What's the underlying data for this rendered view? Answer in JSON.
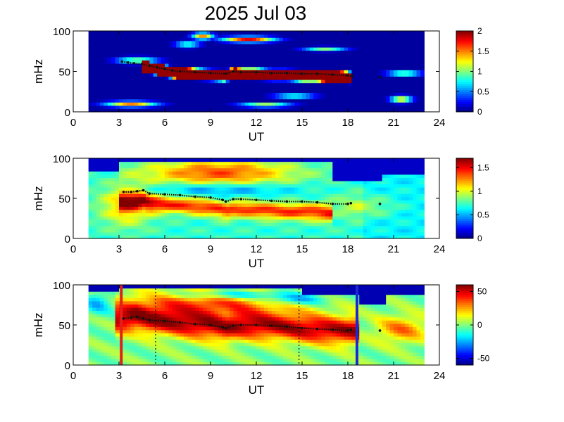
{
  "title": "2025 Jul 03",
  "chart_data": [
    {
      "type": "heatmap",
      "xlabel": "UT",
      "ylabel": "mHz",
      "xlim": [
        0,
        24
      ],
      "ylim": [
        0,
        100
      ],
      "xticks": [
        "0",
        "3",
        "6",
        "9",
        "12",
        "15",
        "18",
        "21",
        "24"
      ],
      "yticks": [
        "0",
        "50",
        "100"
      ],
      "colorbar": {
        "range": [
          0,
          2
        ],
        "ticks": [
          "0",
          "0.5",
          "1",
          "1.5",
          "2"
        ]
      },
      "data_window": [
        1,
        23
      ],
      "trace": [
        {
          "x": 3.2,
          "y": 62
        },
        {
          "x": 3.6,
          "y": 61
        },
        {
          "x": 4.0,
          "y": 60
        },
        {
          "x": 4.5,
          "y": 59
        },
        {
          "x": 5.0,
          "y": 57
        },
        {
          "x": 5.5,
          "y": 55
        },
        {
          "x": 6.0,
          "y": 53
        },
        {
          "x": 6.5,
          "y": 51
        },
        {
          "x": 7.0,
          "y": 50
        },
        {
          "x": 8.0,
          "y": 49
        },
        {
          "x": 9.0,
          "y": 48
        },
        {
          "x": 10.0,
          "y": 47
        },
        {
          "x": 10.5,
          "y": 50
        },
        {
          "x": 11.0,
          "y": 49
        },
        {
          "x": 12.0,
          "y": 49
        },
        {
          "x": 13.0,
          "y": 48
        },
        {
          "x": 14.0,
          "y": 48
        },
        {
          "x": 15.0,
          "y": 47
        },
        {
          "x": 16.0,
          "y": 47
        },
        {
          "x": 17.0,
          "y": 46
        },
        {
          "x": 18.0,
          "y": 45
        },
        {
          "x": 18.3,
          "y": 44
        },
        {
          "x": 20.1,
          "y": 43
        }
      ]
    },
    {
      "type": "heatmap",
      "xlabel": "UT",
      "ylabel": "mHz",
      "xlim": [
        0,
        24
      ],
      "ylim": [
        0,
        100
      ],
      "xticks": [
        "0",
        "3",
        "6",
        "9",
        "12",
        "15",
        "18",
        "21",
        "24"
      ],
      "yticks": [
        "0",
        "50",
        "100"
      ],
      "colorbar": {
        "range": [
          0,
          1.7
        ],
        "ticks": [
          "0",
          "0.5",
          "1",
          "1.5"
        ]
      },
      "data_window": [
        1,
        23
      ],
      "trace": [
        {
          "x": 3.3,
          "y": 58
        },
        {
          "x": 3.8,
          "y": 58
        },
        {
          "x": 4.2,
          "y": 59
        },
        {
          "x": 4.6,
          "y": 60
        },
        {
          "x": 5.0,
          "y": 56
        },
        {
          "x": 6.0,
          "y": 55
        },
        {
          "x": 7.0,
          "y": 54
        },
        {
          "x": 8.0,
          "y": 52
        },
        {
          "x": 9.0,
          "y": 51
        },
        {
          "x": 9.8,
          "y": 48
        },
        {
          "x": 10.0,
          "y": 46
        },
        {
          "x": 10.5,
          "y": 49
        },
        {
          "x": 11.0,
          "y": 49
        },
        {
          "x": 12.0,
          "y": 48
        },
        {
          "x": 13.0,
          "y": 47
        },
        {
          "x": 14.0,
          "y": 46
        },
        {
          "x": 15.0,
          "y": 46
        },
        {
          "x": 16.0,
          "y": 45
        },
        {
          "x": 17.0,
          "y": 43
        },
        {
          "x": 18.0,
          "y": 43
        },
        {
          "x": 18.2,
          "y": 44
        },
        {
          "x": 20.1,
          "y": 43
        }
      ]
    },
    {
      "type": "heatmap",
      "xlabel": "UT",
      "ylabel": "mHz",
      "xlim": [
        0,
        24
      ],
      "ylim": [
        0,
        100
      ],
      "xticks": [
        "0",
        "3",
        "6",
        "9",
        "12",
        "15",
        "18",
        "21",
        "24"
      ],
      "yticks": [
        "0",
        "50",
        "100"
      ],
      "colorbar": {
        "range": [
          -60,
          60
        ],
        "ticks": [
          "-50",
          "0",
          "50"
        ]
      },
      "data_window": [
        1,
        23
      ],
      "markers": [
        {
          "x": 3.15,
          "color": "#e0201b",
          "style": "solid"
        },
        {
          "x": 5.4,
          "color": "#111111",
          "style": "dotted"
        },
        {
          "x": 14.8,
          "color": "#111111",
          "style": "dotted"
        },
        {
          "x": 18.6,
          "color": "#1a2bd6",
          "style": "solid"
        }
      ],
      "trace": [
        {
          "x": 3.3,
          "y": 58
        },
        {
          "x": 3.8,
          "y": 59
        },
        {
          "x": 4.2,
          "y": 60
        },
        {
          "x": 4.6,
          "y": 58
        },
        {
          "x": 5.0,
          "y": 56
        },
        {
          "x": 6.0,
          "y": 55
        },
        {
          "x": 7.0,
          "y": 53
        },
        {
          "x": 8.0,
          "y": 51
        },
        {
          "x": 9.0,
          "y": 50
        },
        {
          "x": 9.8,
          "y": 47
        },
        {
          "x": 10.0,
          "y": 46
        },
        {
          "x": 10.5,
          "y": 49
        },
        {
          "x": 11.0,
          "y": 50
        },
        {
          "x": 12.0,
          "y": 50
        },
        {
          "x": 13.0,
          "y": 49
        },
        {
          "x": 14.0,
          "y": 48
        },
        {
          "x": 15.0,
          "y": 46
        },
        {
          "x": 16.0,
          "y": 45
        },
        {
          "x": 17.0,
          "y": 44
        },
        {
          "x": 18.0,
          "y": 43
        },
        {
          "x": 18.2,
          "y": 44
        },
        {
          "x": 20.1,
          "y": 43
        }
      ]
    }
  ]
}
